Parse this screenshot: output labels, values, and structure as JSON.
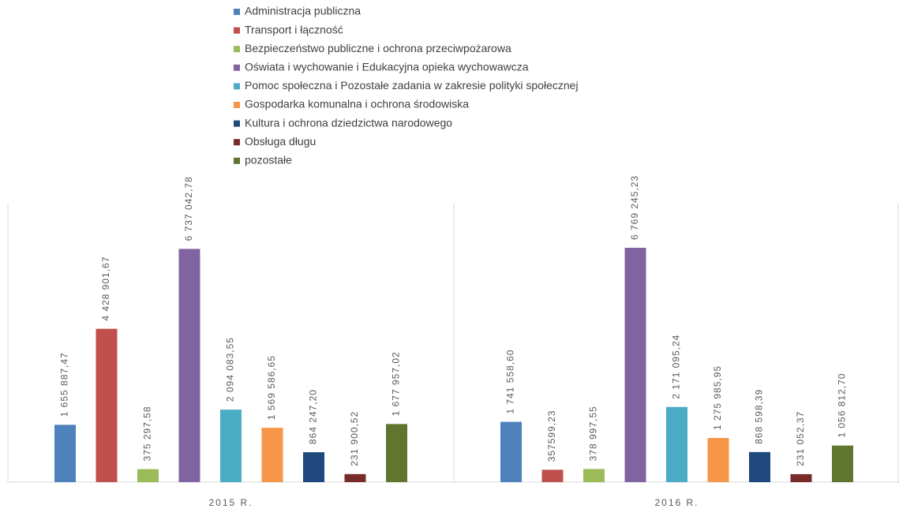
{
  "chart_data": {
    "type": "bar",
    "categories": [
      "2015 R.",
      "2016 R."
    ],
    "series": [
      {
        "name": "Administracja publiczna",
        "color": "#4f81bd",
        "values": [
          1655887.47,
          1741558.6
        ],
        "value_labels": [
          "1 655 887,47",
          "1 741 558,60"
        ]
      },
      {
        "name": "Transport i łączność",
        "color": "#c0504d",
        "values": [
          4428901.67,
          357599.23
        ],
        "value_labels": [
          "4 428 901,67",
          "357599,23"
        ]
      },
      {
        "name": "Bezpieczeństwo publiczne i ochrona przeciwpożarowa",
        "color": "#9bbb59",
        "values": [
          375297.58,
          378997.55
        ],
        "value_labels": [
          "375 297,58",
          "378 997,55"
        ]
      },
      {
        "name": "Oświata i wychowanie i Edukacyjna opieka wychowawcza",
        "color": "#8064a2",
        "values": [
          6737042.78,
          6769245.23
        ],
        "value_labels": [
          "6 737 042,78",
          "6 769 245,23"
        ]
      },
      {
        "name": "Pomoc społeczna i Pozostałe zadania w zakresie polityki społecznej",
        "color": "#4bacc6",
        "values": [
          2094083.55,
          2171095.24
        ],
        "value_labels": [
          "2 094 083,55",
          "2 171 095,24"
        ]
      },
      {
        "name": "Gospodarka komunalna i ochrona środowiska",
        "color": "#f79646",
        "values": [
          1569586.65,
          1275985.95
        ],
        "value_labels": [
          "1 569 586,65",
          "1 275 985,95"
        ]
      },
      {
        "name": "Kultura i ochrona dziedzictwa narodowego",
        "color": "#1f497d",
        "values": [
          864247.2,
          868598.39
        ],
        "value_labels": [
          "864 247,20",
          "868 598,39"
        ]
      },
      {
        "name": "Obsługa długu",
        "color": "#772c2a",
        "values": [
          231900.52,
          231052.37
        ],
        "value_labels": [
          "231 900,52",
          "231 052,37"
        ]
      },
      {
        "name": "pozostałe",
        "color": "#5f7530",
        "values": [
          1677957.02,
          1056812.7
        ],
        "value_labels": [
          "1 677 957,02",
          "1 056 812,70"
        ]
      }
    ],
    "legend": "top"
  }
}
